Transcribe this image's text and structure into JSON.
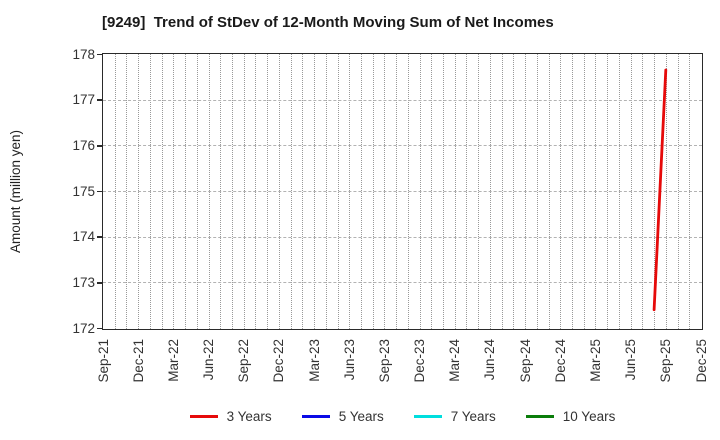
{
  "title": "[9249]  Trend of StDev of 12-Month Moving Sum of Net Incomes",
  "colors": {
    "background": "#ffffff",
    "axis_border": "#2a2a2a",
    "grid_vertical": "#999999",
    "grid_horizontal": "#b3b3b3",
    "tick_text": "#333333",
    "title_text": "#1a1a1a",
    "series_3y": "#e60a0a",
    "series_5y": "#0a0ae6",
    "series_7y": "#00dede",
    "series_10y": "#0a7d0a"
  },
  "chart_data": {
    "type": "line",
    "title": "[9249]  Trend of StDev of 12-Month Moving Sum of Net Incomes",
    "xlabel": "",
    "ylabel": "Amount (million yen)",
    "ylim": [
      172,
      178
    ],
    "y_ticks": [
      172,
      173,
      174,
      175,
      176,
      177,
      178
    ],
    "x_axis_start": "Sep-21",
    "x_axis_end": "Dec-25",
    "x_tick_labels": [
      "Sep-21",
      "Dec-21",
      "Mar-22",
      "Jun-22",
      "Sep-22",
      "Dec-22",
      "Mar-23",
      "Jun-23",
      "Sep-23",
      "Dec-23",
      "Mar-24",
      "Jun-24",
      "Sep-24",
      "Dec-24",
      "Mar-25",
      "Jun-25",
      "Sep-25",
      "Dec-25"
    ],
    "grid": {
      "horizontal": "dashed lines at each integer value",
      "vertical": "dotted lines at each month"
    },
    "legend_position": "bottom-center",
    "series": [
      {
        "name": "3 Years",
        "color": "#e60a0a",
        "points": [
          {
            "x": "Aug-25",
            "y": 172.4
          },
          {
            "x": "Sep-25",
            "y": 177.65
          }
        ]
      },
      {
        "name": "5 Years",
        "color": "#0a0ae6",
        "points": []
      },
      {
        "name": "7 Years",
        "color": "#00dede",
        "points": []
      },
      {
        "name": "10 Years",
        "color": "#0a7d0a",
        "points": []
      }
    ]
  }
}
